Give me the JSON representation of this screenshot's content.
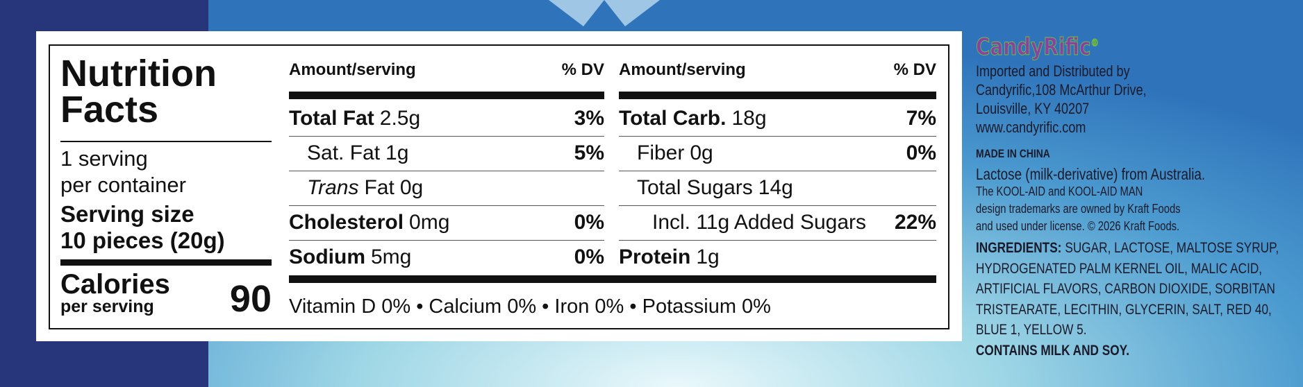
{
  "label": {
    "title": [
      "Nutrition",
      "Facts"
    ],
    "servings": [
      "1 serving",
      "per container"
    ],
    "serving_size_label": "Serving size",
    "serving_size_value": "10 pieces (20g)",
    "calories_label": "Calories",
    "calories_sub": "per serving",
    "calories": 90,
    "columns": [
      {
        "header_amount": "Amount/serving",
        "header_dv": "% DV",
        "rows": [
          {
            "level": 0,
            "name": "Total Fat",
            "amount": "2.5g",
            "dv": "3%"
          },
          {
            "level": 1,
            "name": "Sat. Fat",
            "amount": "1g",
            "dv": "5%"
          },
          {
            "level": 1,
            "name_italic": "Trans",
            "name": "Fat",
            "amount": "0g"
          },
          {
            "level": 0,
            "name": "Cholesterol",
            "amount": "0mg",
            "dv": "0%"
          },
          {
            "level": 0,
            "name": "Sodium",
            "amount": "5mg",
            "dv": "0%"
          }
        ]
      },
      {
        "header_amount": "Amount/serving",
        "header_dv": "% DV",
        "rows": [
          {
            "level": 0,
            "name": "Total Carb.",
            "amount": "18g",
            "dv": "7%"
          },
          {
            "level": 1,
            "name": "Fiber",
            "amount": "0g",
            "dv": "0%"
          },
          {
            "level": 1,
            "name": "Total Sugars",
            "amount": "14g"
          },
          {
            "level": 2,
            "name": "Incl. 11g Added Sugars",
            "dv": "22%"
          },
          {
            "level": 0,
            "name": "Protein",
            "amount": "1g"
          }
        ]
      }
    ],
    "vitamins": "Vitamin D 0% • Calcium 0% • Iron 0% • Potassium 0%"
  },
  "info": {
    "brand": "CandyRific",
    "brand_mark": "®",
    "address": [
      "Imported and Distributed by",
      "Candyrific,108 McArthur Drive,",
      "Louisville, KY 40207",
      "www.candyrific.com"
    ],
    "origin": "MADE IN CHINA",
    "lactose": "Lactose (milk-derivative) from Australia.",
    "trademark": [
      "The KOOL-AID and KOOL-AID MAN",
      "design trademarks are owned by Kraft Foods",
      "and used under license. © 2026 Kraft Foods."
    ],
    "ingredients_label": "INGREDIENTS:",
    "ingredients": [
      "SUGAR, LACTOSE, MALTOSE SYRUP,",
      "HYDROGENATED PALM KERNEL OIL, MALIC ACID,",
      "ARTIFICIAL FLAVORS, CARBON DIOXIDE, SORBITAN",
      "TRISTEARATE, LECITHIN, GLYCERIN, SALT, RED 40,",
      "BLUE 1, YELLOW 5."
    ],
    "allergens": "CONTAINS MILK AND SOY."
  }
}
